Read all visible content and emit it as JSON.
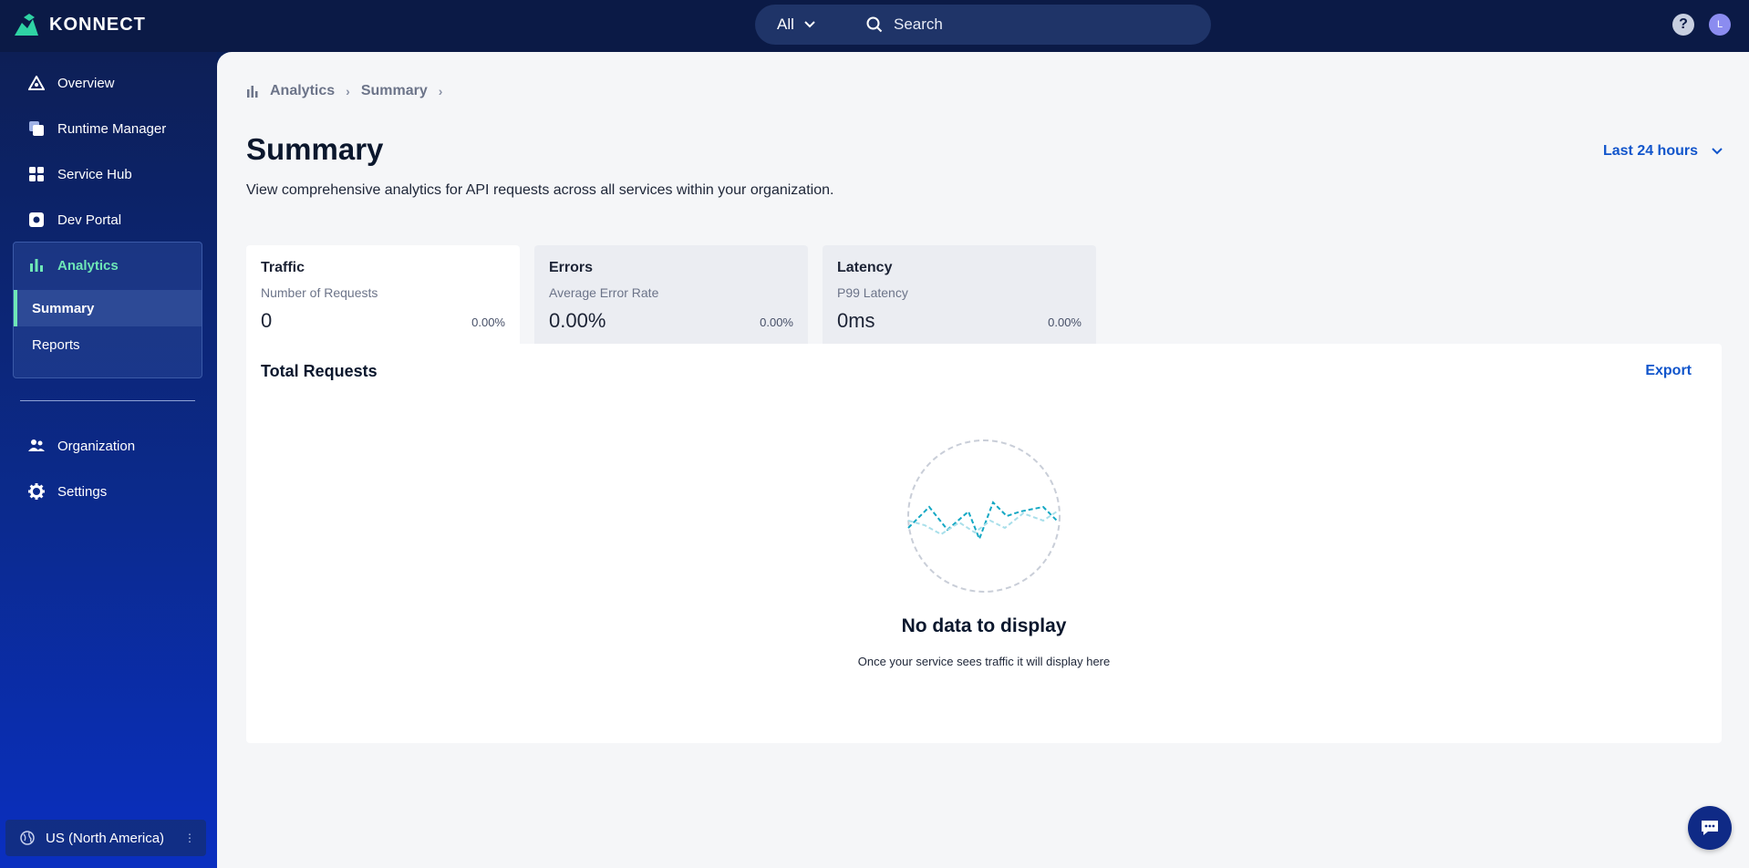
{
  "header": {
    "logo_text": "KONNECT",
    "search_scope": "All",
    "search_placeholder": "Search",
    "help_icon_glyph": "?",
    "avatar_initial": "L"
  },
  "sidebar": {
    "items": [
      {
        "label": "Overview",
        "icon": "overview-icon"
      },
      {
        "label": "Runtime Manager",
        "icon": "runtime-manager-icon"
      },
      {
        "label": "Service Hub",
        "icon": "service-hub-icon"
      },
      {
        "label": "Dev Portal",
        "icon": "dev-portal-icon"
      },
      {
        "label": "Analytics",
        "icon": "analytics-icon"
      },
      {
        "label": "Organization",
        "icon": "organization-icon"
      },
      {
        "label": "Settings",
        "icon": "settings-icon"
      }
    ],
    "analytics_sub": [
      "Summary",
      "Reports"
    ],
    "active_sub": "Summary",
    "region": "US (North America)"
  },
  "main": {
    "breadcrumb": [
      "Analytics",
      "Summary"
    ],
    "title": "Summary",
    "description": "View comprehensive analytics for API requests across all services within your organization.",
    "time_range": "Last 24 hours",
    "tabs": [
      {
        "title": "Traffic",
        "subtitle": "Number of Requests",
        "value": "0",
        "change": "0.00%"
      },
      {
        "title": "Errors",
        "subtitle": "Average Error Rate",
        "value": "0.00%",
        "change": "0.00%"
      },
      {
        "title": "Latency",
        "subtitle": "P99 Latency",
        "value": "0ms",
        "change": "0.00%"
      }
    ],
    "active_tab": "Traffic",
    "card": {
      "title": "Total Requests",
      "export_label": "Export",
      "empty_title": "No data to display",
      "empty_subtitle": "Once your service sees traffic it will display here"
    }
  },
  "colors": {
    "accent_blue": "#1155cb",
    "active_green": "#6ee7b7",
    "topbar": "#0b1a46",
    "chart_teal": "#14a8c4"
  }
}
